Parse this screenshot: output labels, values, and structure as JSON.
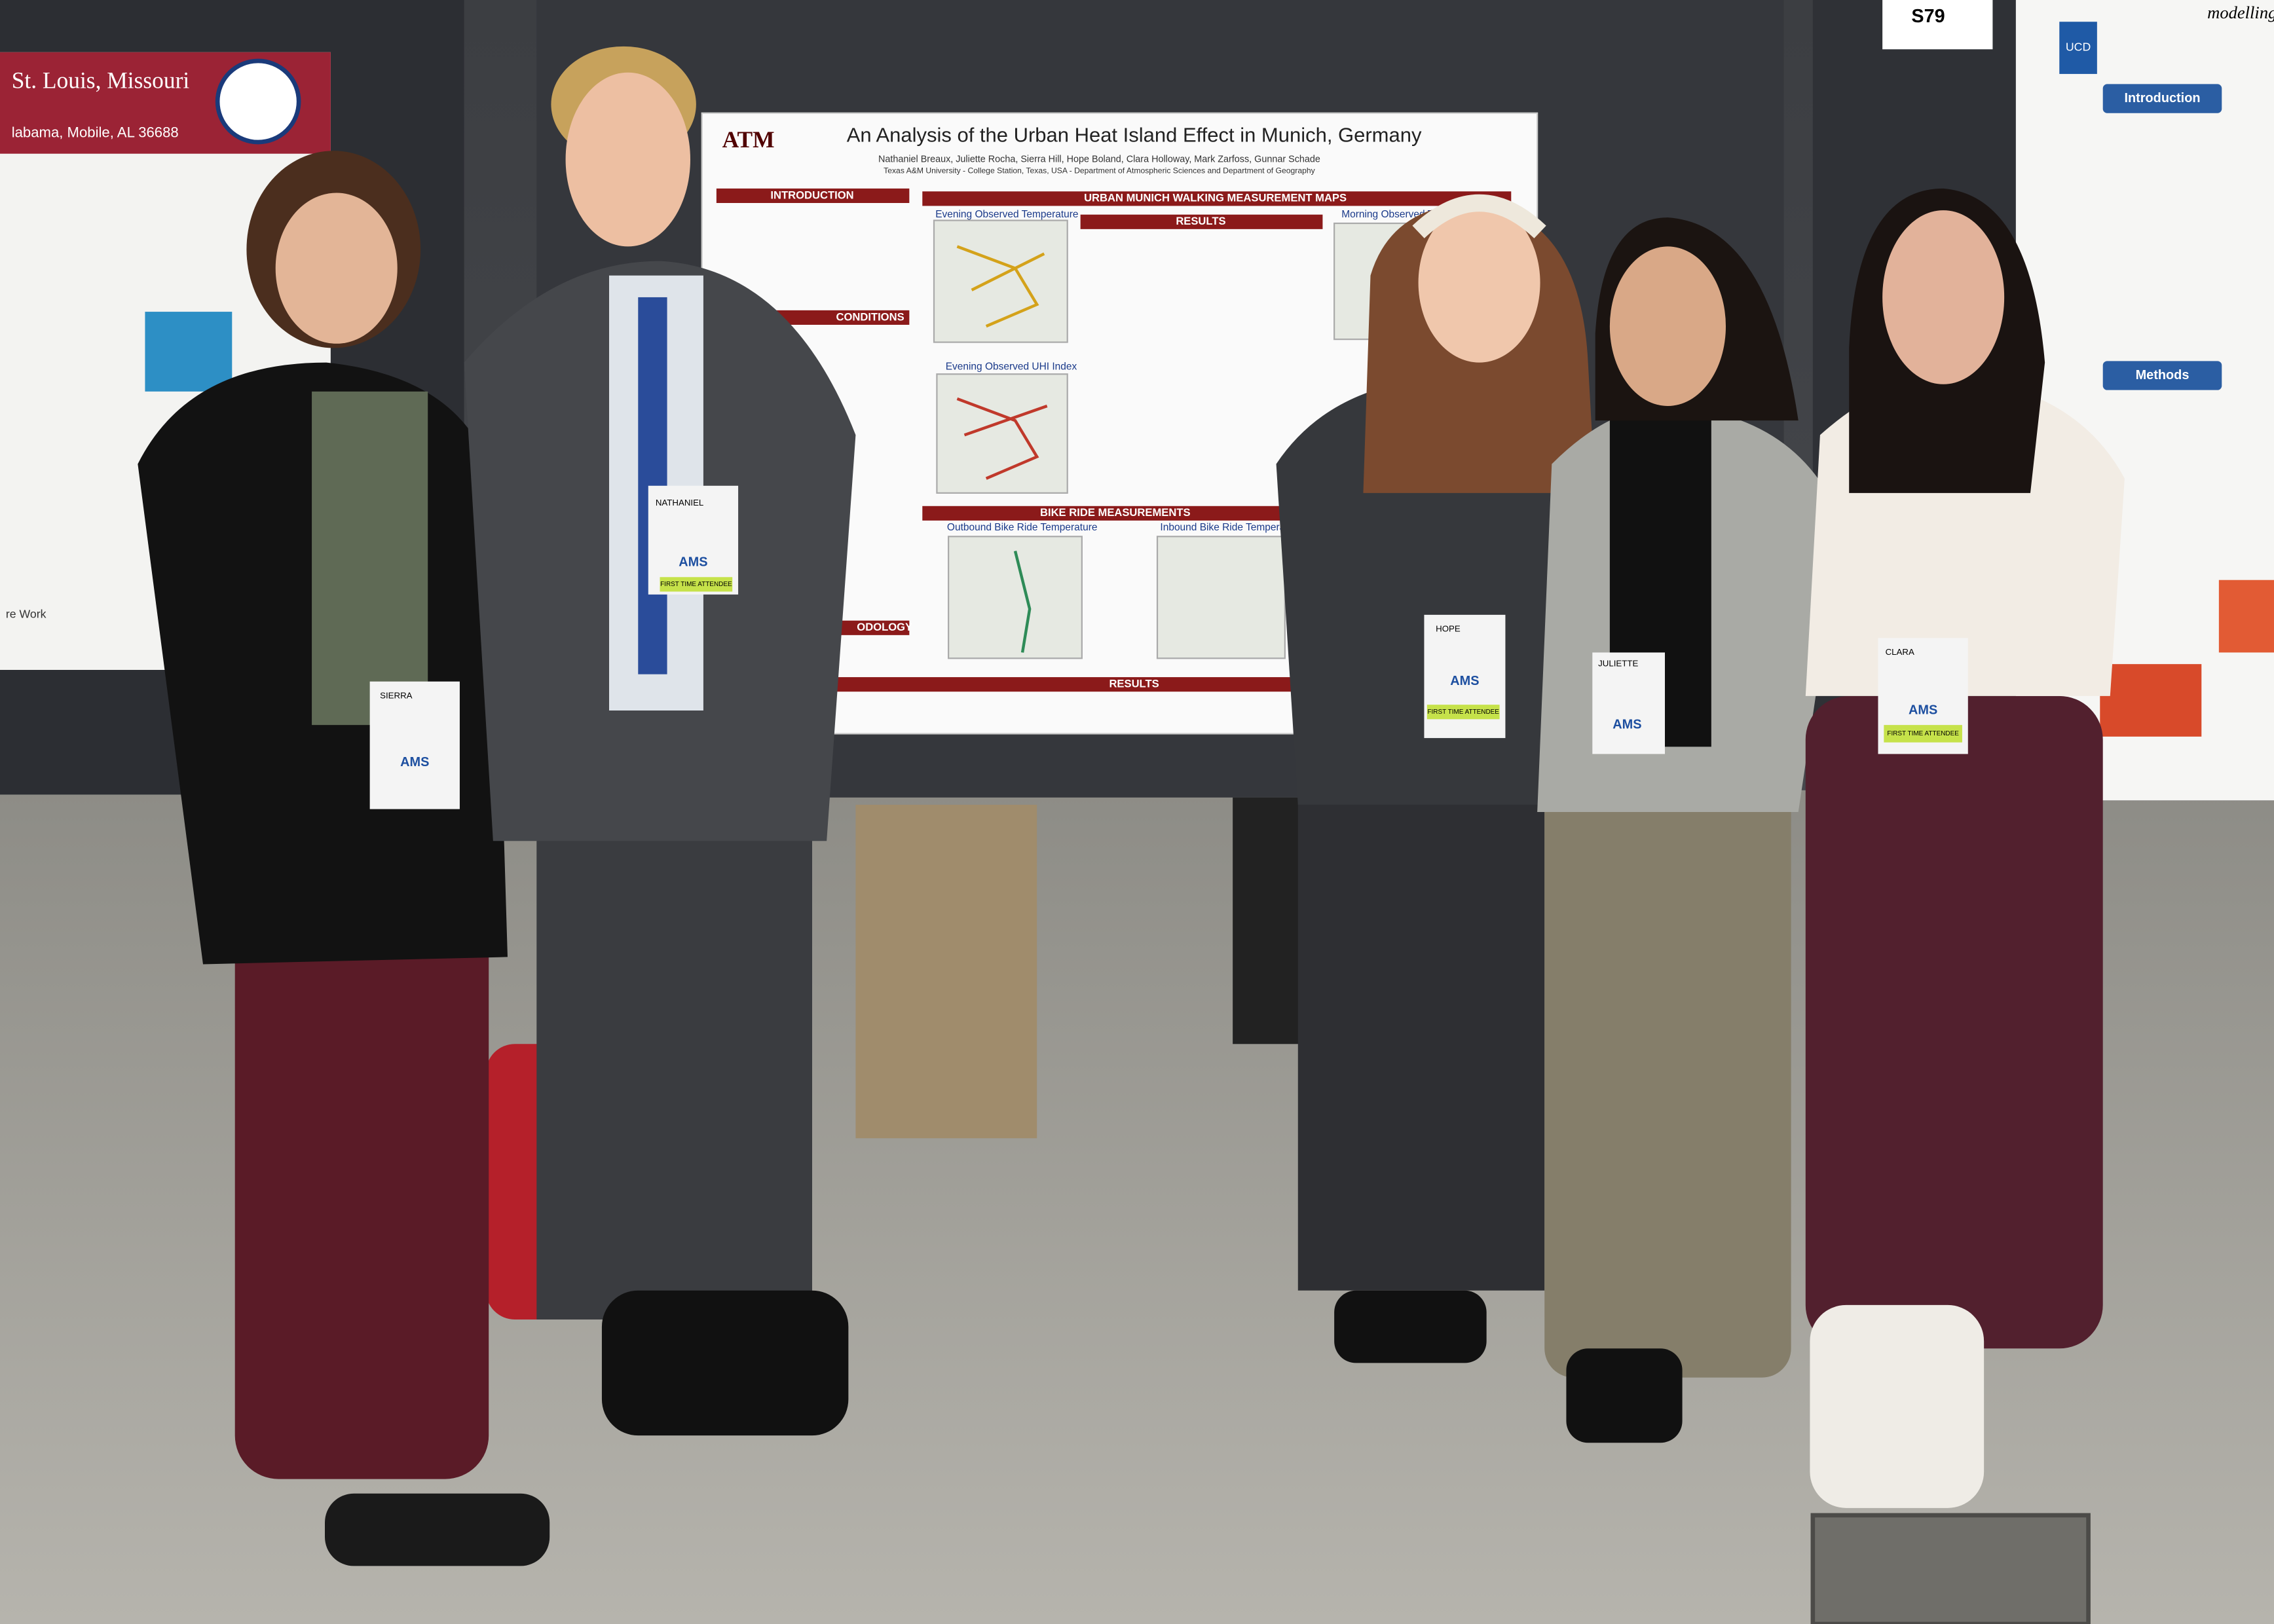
{
  "main_poster": {
    "title": "An Analysis of the Urban Heat Island Effect in Munich, Germany",
    "authors": "Nathaniel Breaux, Juliette Rocha, Sierra Hill, Hope Boland, Clara Holloway, Mark Zarfoss, Gunnar Schade",
    "affiliation": "Texas A&M University - College Station, Texas, USA - Department of Atmospheric Sciences and Department of Geography",
    "sections": {
      "introduction": "INTRODUCTION",
      "maps": "URBAN MUNICH WALKING MEASUREMENT MAPS",
      "results": "RESULTS",
      "bike": "BIKE RIDE MEASUREMENTS",
      "results_bottom": "RESULTS",
      "conditions": "CONDITIONS",
      "methodology": "ODOLOGY"
    },
    "panels": [
      "Evening Observed Temperature",
      "Evening Observed UHI Index",
      "Morning Observed Temperature",
      "Outbound Bike Ride Temperature",
      "Inbound Bike Ride Temperature"
    ]
  },
  "left_poster": {
    "title": "St. Louis, Missouri",
    "subtitle": "labama, Mobile, AL 36688",
    "section": "re Work"
  },
  "right_poster": {
    "booth": "S79",
    "heading": "modelling and",
    "introduction": "Introduction",
    "methods": "Methods",
    "badge": "UCD"
  },
  "badges": {
    "names": [
      "SIERRA",
      "NATHANIEL",
      "HOPE",
      "JULIETTE",
      "CLARA"
    ],
    "org": "AMS",
    "ribbon": "FIRST TIME ATTENDEE"
  }
}
